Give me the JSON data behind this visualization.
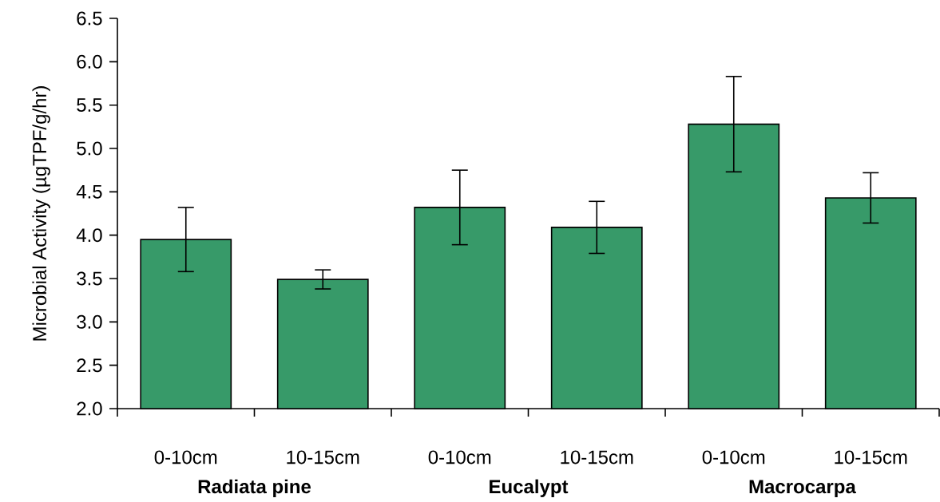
{
  "chart_data": {
    "type": "bar",
    "ylabel": "Microbial Activity (µgTPF/g/hr)",
    "categories": [
      "0-10cm",
      "10-15cm",
      "0-10cm",
      "10-15cm",
      "0-10cm",
      "10-15cm"
    ],
    "values": [
      3.95,
      3.49,
      4.32,
      4.09,
      5.28,
      4.43
    ],
    "errors": [
      0.37,
      0.11,
      0.43,
      0.3,
      0.55,
      0.29
    ],
    "color": "#379a69",
    "ylim": [
      2.0,
      6.5
    ],
    "yticks": [
      {
        "value": 2.0,
        "label": "2.0"
      },
      {
        "value": 2.5,
        "label": "2.5"
      },
      {
        "value": 3.0,
        "label": "3.0"
      },
      {
        "value": 3.5,
        "label": "3.5"
      },
      {
        "value": 4.0,
        "label": "4.0"
      },
      {
        "value": 4.5,
        "label": "4.5"
      },
      {
        "value": 5.0,
        "label": "5.0"
      },
      {
        "value": 5.5,
        "label": "5.5"
      },
      {
        "value": 6.0,
        "label": "6.0"
      },
      {
        "value": 6.5,
        "label": "6.5"
      }
    ],
    "annotations": [
      "**Radiata pine**",
      "**Eucalypt**",
      "**Macrocarpa**"
    ],
    "grid": false,
    "legend": false
  }
}
